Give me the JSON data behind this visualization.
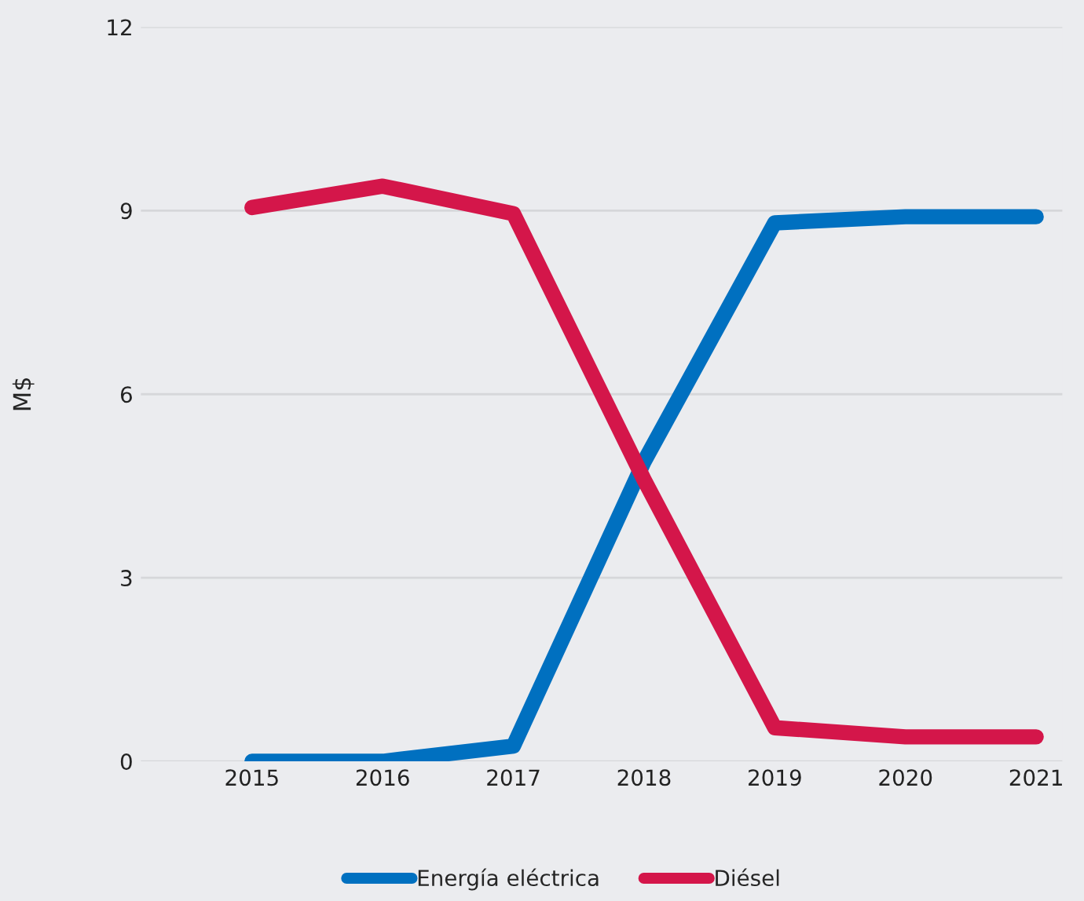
{
  "chart_data": {
    "type": "line",
    "ylabel": "M$",
    "categories": [
      "2015",
      "2016",
      "2017",
      "2018",
      "2019",
      "2020",
      "2021"
    ],
    "series": [
      {
        "name": "Energía eléctrica",
        "color": "#0070c0",
        "values": [
          0,
          0,
          0.25,
          4.9,
          8.8,
          8.9,
          8.9
        ]
      },
      {
        "name": "Diésel",
        "color": "#d4164a",
        "values": [
          9.05,
          9.4,
          8.95,
          4.6,
          0.55,
          0.4,
          0.4
        ]
      }
    ],
    "ylim": [
      0,
      12
    ],
    "yticks": [
      0,
      3,
      6,
      9,
      12
    ],
    "grid": "y",
    "legend": "bottom",
    "marker": "none",
    "line_style": "solid"
  }
}
